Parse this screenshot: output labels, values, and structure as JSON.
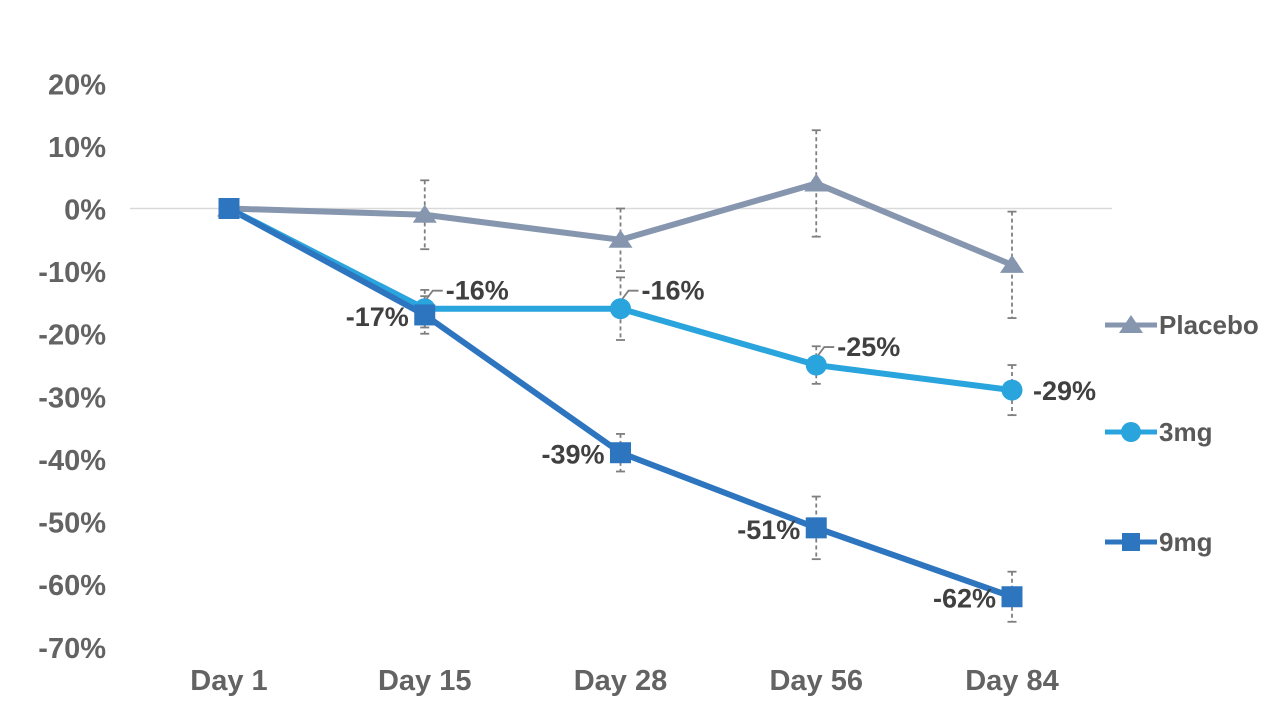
{
  "canvas": {
    "background": "#ffffff"
  },
  "chart_data": {
    "type": "line",
    "title": "",
    "x_categories": [
      "Day 1",
      "Day 15",
      "Day 28",
      "Day 56",
      "Day 84"
    ],
    "y_ticks": [
      "20%",
      "10%",
      "0%",
      "-10%",
      "-20%",
      "-30%",
      "-40%",
      "-50%",
      "-60%",
      "-70%"
    ],
    "y_axis": {
      "min": -70,
      "max": 20,
      "step": 10,
      "unit": "%"
    },
    "grid": "single horizontal gridline at 0% only",
    "legend_position": "right",
    "series": [
      {
        "name": "Placebo",
        "marker": "triangle",
        "color": "#8796AF",
        "values": [
          0,
          -1,
          -5,
          4,
          -9
        ],
        "error": [
          null,
          5.5,
          5,
          8.5,
          8.5
        ],
        "point_labels": [
          null,
          null,
          null,
          null,
          null
        ],
        "label_pos": [
          null,
          null,
          null,
          null,
          null
        ]
      },
      {
        "name": "3mg",
        "marker": "circle",
        "color": "#29A4DC",
        "values": [
          0,
          -16,
          -16,
          -25,
          -29
        ],
        "error": [
          null,
          3,
          5,
          3,
          4
        ],
        "point_labels": [
          null,
          "-16%",
          "-16%",
          "-25%",
          "-29%"
        ],
        "label_pos": [
          null,
          "ru",
          "ru",
          "ru",
          "r"
        ]
      },
      {
        "name": "9mg",
        "marker": "square",
        "color": "#2E75C0",
        "values": [
          0,
          -17,
          -39,
          -51,
          -62
        ],
        "error": [
          null,
          3,
          3,
          5,
          4
        ],
        "point_labels": [
          null,
          "-17%",
          "-39%",
          "-51%",
          "-62%"
        ],
        "label_pos": [
          null,
          "l",
          "l",
          "l",
          "l"
        ]
      }
    ]
  },
  "colors": {
    "gridline": "#D9D9D9",
    "error_bar": "#7F7F7F",
    "axis_text": "#636363",
    "data_label_text": "#404040",
    "legend_text": "#595959"
  }
}
